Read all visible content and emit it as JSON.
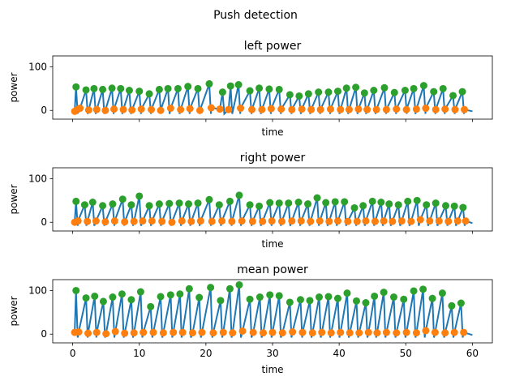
{
  "figure_title": "Push detection",
  "colors": {
    "signal": "#1f77b4",
    "peak": "#2ca02c",
    "trough": "#ff7f0e"
  },
  "chart_data": [
    {
      "type": "line",
      "title": "left power",
      "xlabel": "time",
      "ylabel": "power",
      "xlim": [
        -3,
        63
      ],
      "ylim": [
        -20,
        125
      ],
      "xticks": [
        0,
        10,
        20,
        30,
        40,
        50,
        60
      ],
      "xtick_labels_visible": false,
      "yticks": [
        0,
        100
      ],
      "peaks": {
        "x": [
          0.5,
          2,
          3.2,
          4.5,
          5.9,
          7.2,
          8.5,
          10,
          11.5,
          13,
          14.3,
          15.8,
          17.3,
          18.8,
          20.5,
          22.5,
          23.7,
          24.9,
          26.6,
          28,
          29.5,
          31,
          32.6,
          34,
          35.4,
          36.9,
          38.4,
          39.8,
          41.1,
          42.5,
          43.8,
          45.2,
          46.8,
          48.3,
          49.9,
          51.2,
          52.7,
          54.2,
          55.6,
          57.1,
          58.5
        ],
        "y": [
          54,
          47,
          50,
          48,
          51,
          50,
          46,
          44,
          38,
          48,
          50,
          50,
          55,
          50,
          61,
          42,
          56,
          59,
          45,
          51,
          49,
          48,
          36,
          33,
          38,
          42,
          42,
          44,
          51,
          53,
          40,
          46,
          52,
          41,
          46,
          50,
          57,
          43,
          50,
          34,
          43
        ]
      },
      "troughs": {
        "x": [
          0.3,
          0.7,
          1.1,
          2.4,
          3.6,
          4.9,
          6.2,
          7.6,
          8.9,
          10.3,
          11.8,
          13.2,
          14.7,
          16.2,
          17.6,
          19.1,
          20.8,
          22.1,
          23.4,
          25.2,
          26.9,
          28.4,
          29.8,
          31.3,
          32.9,
          34.4,
          35.8,
          37.2,
          38.7,
          40.2,
          41.5,
          42.9,
          44.2,
          45.6,
          47.1,
          48.6,
          50.1,
          51.6,
          53,
          54.5,
          55.9,
          57.4,
          58.8
        ],
        "y": [
          -2,
          2,
          5,
          1,
          2,
          0,
          3,
          2,
          1,
          3,
          2,
          0,
          5,
          2,
          4,
          0,
          6,
          3,
          2,
          5,
          2,
          2,
          4,
          3,
          2,
          3,
          2,
          2,
          3,
          2,
          2,
          3,
          2,
          2,
          2,
          3,
          2,
          3,
          5,
          2,
          3,
          2,
          2
        ]
      }
    },
    {
      "type": "line",
      "title": "right power",
      "xlabel": "time",
      "ylabel": "power",
      "xlim": [
        -3,
        63
      ],
      "ylim": [
        -20,
        125
      ],
      "xticks": [
        0,
        10,
        20,
        30,
        40,
        50,
        60
      ],
      "xtick_labels_visible": false,
      "yticks": [
        0,
        100
      ],
      "peaks": {
        "x": [
          0.5,
          1.8,
          3,
          4.5,
          6,
          7.5,
          8.8,
          10,
          11.5,
          13,
          14.5,
          16,
          17.4,
          18.8,
          20.5,
          22,
          23.6,
          25,
          26.6,
          28,
          29.6,
          31,
          32.4,
          33.9,
          35.3,
          36.7,
          38,
          39.4,
          40.8,
          42.3,
          43.6,
          45,
          46.3,
          47.5,
          48.9,
          50.3,
          51.7,
          53.1,
          54.5,
          56,
          57.3,
          58.6
        ],
        "y": [
          48,
          40,
          46,
          38,
          42,
          53,
          40,
          60,
          38,
          42,
          43,
          44,
          42,
          44,
          52,
          40,
          48,
          62,
          40,
          37,
          45,
          44,
          44,
          46,
          42,
          56,
          45,
          47,
          47,
          33,
          38,
          48,
          46,
          42,
          40,
          48,
          50,
          40,
          44,
          38,
          37,
          34
        ]
      },
      "troughs": {
        "x": [
          0.3,
          0.8,
          2.2,
          3.5,
          4.9,
          6.3,
          7.8,
          9.2,
          10.5,
          11.9,
          13.4,
          14.9,
          16.4,
          17.8,
          19.2,
          20.9,
          22.4,
          23.9,
          25.4,
          27,
          28.5,
          29.9,
          31.4,
          32.9,
          34.3,
          35.7,
          37.1,
          38.5,
          39.8,
          41.3,
          42.7,
          44,
          45.4,
          46.7,
          48,
          49.4,
          50.8,
          52.2,
          53.6,
          55,
          56.4,
          57.8,
          59
        ],
        "y": [
          0,
          3,
          2,
          3,
          1,
          3,
          1,
          2,
          3,
          3,
          2,
          0,
          3,
          2,
          3,
          2,
          3,
          2,
          3,
          2,
          2,
          3,
          2,
          3,
          3,
          2,
          3,
          2,
          3,
          2,
          2,
          3,
          2,
          3,
          2,
          3,
          2,
          6,
          3,
          3,
          2,
          3,
          3
        ]
      }
    },
    {
      "type": "line",
      "title": "mean power",
      "xlabel": "time",
      "ylabel": "power",
      "xlim": [
        -3,
        63
      ],
      "ylim": [
        -20,
        125
      ],
      "xticks": [
        0,
        10,
        20,
        30,
        40,
        50,
        60
      ],
      "xtick_labels_visible": true,
      "yticks": [
        0,
        100
      ],
      "peaks": {
        "x": [
          0.5,
          2,
          3.3,
          4.6,
          6,
          7.4,
          8.8,
          10.2,
          11.7,
          13.2,
          14.7,
          16.1,
          17.5,
          19,
          20.7,
          22.2,
          23.6,
          25,
          26.6,
          28.1,
          29.6,
          31,
          32.6,
          34.2,
          35.6,
          37,
          38.4,
          39.8,
          41.2,
          42.6,
          44,
          45.3,
          46.7,
          48.2,
          49.7,
          51.2,
          52.6,
          54,
          55.5,
          56.9,
          58.3
        ],
        "y": [
          100,
          83,
          87,
          75,
          85,
          92,
          79,
          97,
          63,
          86,
          90,
          92,
          104,
          84,
          107,
          77,
          104,
          113,
          80,
          85,
          90,
          88,
          73,
          79,
          77,
          85,
          86,
          82,
          94,
          76,
          72,
          87,
          96,
          85,
          80,
          99,
          103,
          82,
          94,
          65,
          71
        ]
      },
      "troughs": {
        "x": [
          0.3,
          0.9,
          2.3,
          3.6,
          5,
          6.4,
          7.8,
          9.2,
          10.6,
          12.1,
          13.6,
          15.1,
          16.5,
          18,
          19.4,
          21.1,
          22.6,
          24,
          25.5,
          27.1,
          28.6,
          30,
          31.5,
          33,
          34.5,
          36,
          37.4,
          38.8,
          40.2,
          41.6,
          43,
          44.4,
          45.7,
          47.1,
          48.6,
          50.1,
          51.6,
          53,
          54.4,
          55.9,
          57.3,
          58.7
        ],
        "y": [
          4,
          5,
          2,
          4,
          1,
          6,
          2,
          3,
          4,
          4,
          3,
          4,
          4,
          3,
          4,
          3,
          4,
          3,
          7,
          4,
          3,
          4,
          3,
          5,
          4,
          3,
          4,
          3,
          4,
          3,
          3,
          4,
          3,
          4,
          3,
          4,
          3,
          8,
          4,
          3,
          4,
          4
        ]
      }
    }
  ]
}
